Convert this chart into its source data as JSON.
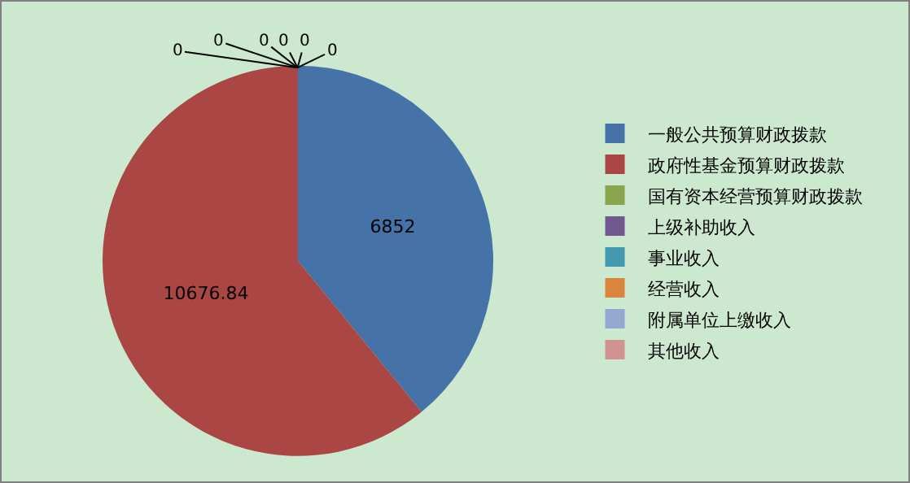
{
  "chart_data": {
    "type": "pie",
    "categories": [
      "一般公共预算财政拨款",
      "政府性基金预算财政拨款",
      "国有资本经营预算财政拨款",
      "上级补助收入",
      "事业收入",
      "经营收入",
      "附属单位上缴收入",
      "其他收入"
    ],
    "values": [
      6852,
      10676.84,
      0,
      0,
      0,
      0,
      0,
      0
    ],
    "colors": [
      "#4572a7",
      "#aa4643",
      "#89a54e",
      "#71588f",
      "#4198af",
      "#db843d",
      "#93a9cf",
      "#d19392"
    ],
    "value_labels": [
      "6852",
      "10676.84",
      "0",
      "0",
      "0",
      "0",
      "0",
      "0"
    ],
    "legend": "right"
  }
}
